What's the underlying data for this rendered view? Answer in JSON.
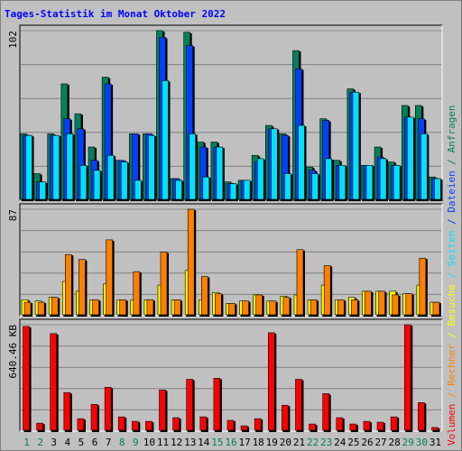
{
  "chart_data": [
    {
      "type": "bar",
      "title": "Tages-Statistik im Monat Oktober 2022",
      "legend_separator": " / ",
      "ylim": [
        0,
        102
      ],
      "yticks": [
        102
      ],
      "series": [
        {
          "name": "Anfragen",
          "color": "#00805c",
          "values": [
            40,
            16,
            40,
            70,
            52,
            32,
            74,
            24,
            40,
            40,
            102,
            13,
            101,
            35,
            35,
            11,
            12,
            27,
            45,
            40,
            90,
            20,
            49,
            24,
            67,
            21,
            32,
            23,
            57,
            57,
            14
          ]
        },
        {
          "name": "Dateien",
          "color": "#0040ff",
          "values": [
            39,
            11,
            39,
            49,
            43,
            24,
            70,
            24,
            40,
            40,
            98,
            13,
            93,
            32,
            32,
            10,
            12,
            23,
            43,
            39,
            79,
            18,
            48,
            21,
            65,
            21,
            26,
            21,
            50,
            49,
            13
          ]
        },
        {
          "name": "Seiten",
          "color": "#00e0ff",
          "values": [
            39,
            11,
            39,
            40,
            21,
            18,
            27,
            23,
            12,
            39,
            72,
            12,
            40,
            14,
            32,
            10,
            12,
            25,
            43,
            16,
            45,
            16,
            25,
            21,
            65,
            21,
            25,
            21,
            50,
            40,
            13
          ]
        }
      ]
    },
    {
      "type": "bar",
      "ylim": [
        0,
        87
      ],
      "yticks": [
        87
      ],
      "series": [
        {
          "name": "Besuche",
          "color": "#ffff00",
          "values": [
            13,
            12,
            15,
            28,
            20,
            13,
            26,
            13,
            13,
            13,
            25,
            13,
            37,
            13,
            19,
            10,
            12,
            17,
            12,
            16,
            17,
            13,
            25,
            13,
            15,
            20,
            20,
            20,
            18,
            25,
            11
          ]
        },
        {
          "name": "Rechner",
          "color": "#ff8000",
          "values": [
            11,
            11,
            15,
            50,
            46,
            13,
            62,
            13,
            36,
            13,
            52,
            13,
            87,
            32,
            18,
            10,
            12,
            17,
            12,
            15,
            54,
            13,
            41,
            13,
            13,
            20,
            20,
            17,
            18,
            47,
            11
          ]
        }
      ]
    },
    {
      "type": "bar",
      "ylim": [
        0,
        640.46
      ],
      "yticks": [
        {
          "value": 640.46,
          "label": "640.46 KB"
        }
      ],
      "categories": [
        "1",
        "2",
        "3",
        "4",
        "5",
        "6",
        "7",
        "8",
        "9",
        "10",
        "11",
        "12",
        "13",
        "14",
        "15",
        "16",
        "17",
        "18",
        "19",
        "20",
        "21",
        "22",
        "23",
        "24",
        "25",
        "26",
        "27",
        "28",
        "29",
        "30",
        "31"
      ],
      "label_colors": [
        "#00805c",
        "#00805c",
        "#000000",
        "#000000",
        "#000000",
        "#000000",
        "#000000",
        "#00805c",
        "#00805c",
        "#000000",
        "#000000",
        "#000000",
        "#000000",
        "#000000",
        "#00805c",
        "#00805c",
        "#000000",
        "#000000",
        "#000000",
        "#000000",
        "#000000",
        "#00805c",
        "#00805c",
        "#000000",
        "#000000",
        "#000000",
        "#000000",
        "#000000",
        "#00805c",
        "#00805c",
        "#000000"
      ],
      "series": [
        {
          "name": "Volumen",
          "color": "#ff0000",
          "values": [
            630,
            48,
            587,
            232,
            75,
            161,
            264,
            86,
            59,
            59,
            248,
            81,
            312,
            86,
            318,
            65,
            32,
            75,
            592,
            156,
            312,
            43,
            226,
            81,
            43,
            59,
            54,
            86,
            640.46,
            172,
            22
          ]
        }
      ]
    }
  ]
}
